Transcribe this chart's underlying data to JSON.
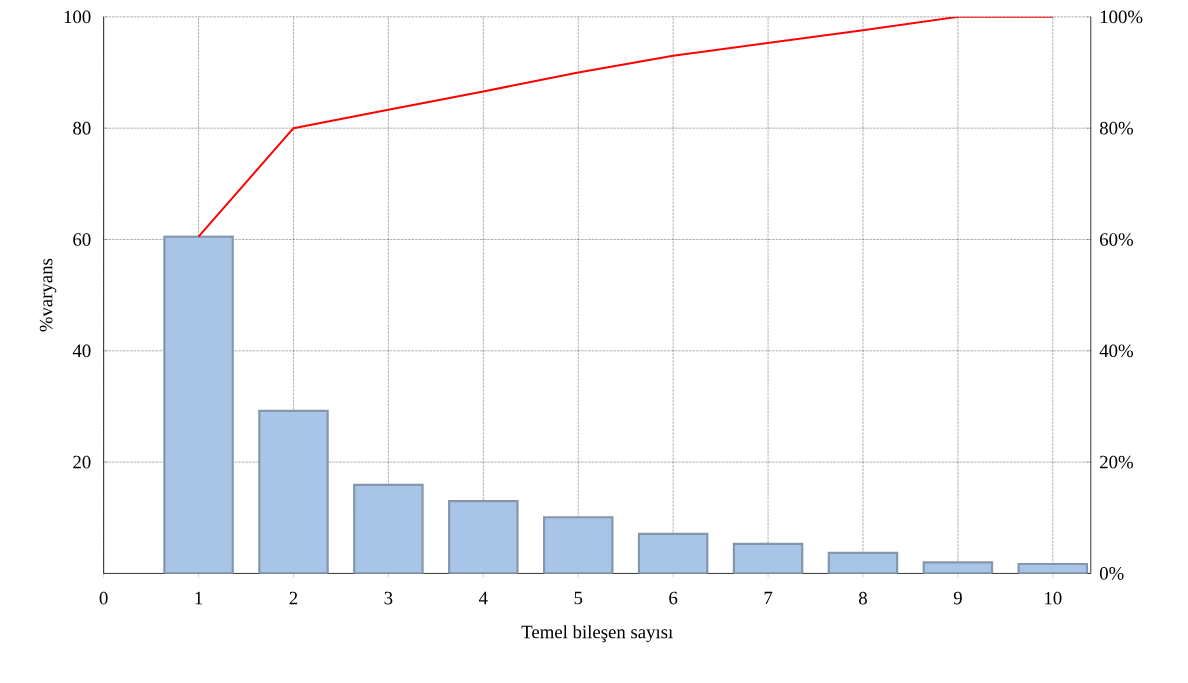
{
  "chart_data": {
    "type": "bar",
    "xlabel": "Temel bileşen sayısı",
    "ylabel": "%varyans",
    "x": [
      1,
      2,
      3,
      4,
      5,
      6,
      7,
      8,
      9,
      10
    ],
    "xlim": [
      0,
      10.4
    ],
    "xticks": [
      0,
      1,
      2,
      3,
      4,
      5,
      6,
      7,
      8,
      9,
      10
    ],
    "ylim": [
      0,
      100
    ],
    "yticks": [
      20,
      40,
      60,
      80,
      100
    ],
    "y2lim": [
      0,
      100
    ],
    "y2ticks": [
      {
        "value": 0,
        "label": "0%"
      },
      {
        "value": 20,
        "label": "20%"
      },
      {
        "value": 40,
        "label": "40%"
      },
      {
        "value": 60,
        "label": "60%"
      },
      {
        "value": 80,
        "label": "80%"
      },
      {
        "value": 100,
        "label": "100%"
      }
    ],
    "grid": true,
    "series": [
      {
        "color": "#a8c5e8",
        "values": [
          60.5,
          29.2,
          15.9,
          13.0,
          10.1,
          7.1,
          5.3,
          3.7,
          2.0,
          1.7
        ]
      },
      {
        "type": "line",
        "axis": "y2",
        "color": "#ff0000",
        "values": [
          60.5,
          80,
          83.3,
          86.6,
          90,
          93,
          95.3,
          97.6,
          100,
          100
        ]
      }
    ]
  }
}
